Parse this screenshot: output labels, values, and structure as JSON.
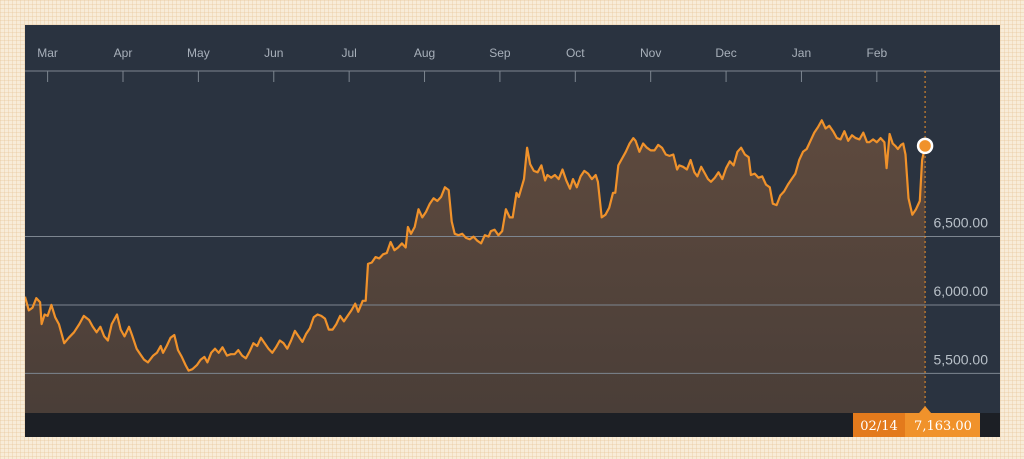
{
  "chart_data": {
    "type": "area",
    "title": "",
    "xlabel": "",
    "ylabel": "",
    "ylim": [
      5210,
      7630
    ],
    "y_ticks": [
      {
        "value": 5500,
        "label": "5,500.00"
      },
      {
        "value": 6000,
        "label": "6,000.00"
      },
      {
        "value": 6500,
        "label": "6,500.00"
      }
    ],
    "x_months": [
      {
        "label": "Mar",
        "value": 0.3
      },
      {
        "label": "Apr",
        "value": 1.3
      },
      {
        "label": "May",
        "value": 2.3
      },
      {
        "label": "Jun",
        "value": 3.3
      },
      {
        "label": "Jul",
        "value": 4.3
      },
      {
        "label": "Aug",
        "value": 5.3
      },
      {
        "label": "Sep",
        "value": 6.3
      },
      {
        "label": "Oct",
        "value": 7.3
      },
      {
        "label": "Nov",
        "value": 8.3
      },
      {
        "label": "Dec",
        "value": 9.3
      },
      {
        "label": "Jan",
        "value": 10.3
      },
      {
        "label": "Feb",
        "value": 11.3
      }
    ],
    "x_domain": [
      0,
      11.74
    ],
    "series": [
      {
        "points": [
          [
            0.0,
            6060
          ],
          [
            0.05,
            5960
          ],
          [
            0.1,
            5980
          ],
          [
            0.15,
            6050
          ],
          [
            0.2,
            6020
          ],
          [
            0.22,
            5860
          ],
          [
            0.26,
            5930
          ],
          [
            0.3,
            5920
          ],
          [
            0.35,
            6000
          ],
          [
            0.4,
            5910
          ],
          [
            0.45,
            5860
          ],
          [
            0.52,
            5720
          ],
          [
            0.58,
            5760
          ],
          [
            0.65,
            5800
          ],
          [
            0.72,
            5860
          ],
          [
            0.78,
            5920
          ],
          [
            0.85,
            5890
          ],
          [
            0.9,
            5840
          ],
          [
            0.95,
            5800
          ],
          [
            1.0,
            5840
          ],
          [
            1.05,
            5770
          ],
          [
            1.1,
            5740
          ],
          [
            1.15,
            5860
          ],
          [
            1.22,
            5930
          ],
          [
            1.27,
            5820
          ],
          [
            1.32,
            5770
          ],
          [
            1.38,
            5840
          ],
          [
            1.42,
            5780
          ],
          [
            1.48,
            5680
          ],
          [
            1.53,
            5640
          ],
          [
            1.58,
            5600
          ],
          [
            1.63,
            5580
          ],
          [
            1.7,
            5630
          ],
          [
            1.75,
            5650
          ],
          [
            1.8,
            5700
          ],
          [
            1.83,
            5650
          ],
          [
            1.88,
            5700
          ],
          [
            1.93,
            5760
          ],
          [
            1.98,
            5780
          ],
          [
            2.03,
            5670
          ],
          [
            2.08,
            5620
          ],
          [
            2.13,
            5560
          ],
          [
            2.17,
            5520
          ],
          [
            2.22,
            5530
          ],
          [
            2.28,
            5560
          ],
          [
            2.33,
            5600
          ],
          [
            2.38,
            5620
          ],
          [
            2.42,
            5580
          ],
          [
            2.47,
            5650
          ],
          [
            2.52,
            5680
          ],
          [
            2.57,
            5650
          ],
          [
            2.62,
            5690
          ],
          [
            2.68,
            5630
          ],
          [
            2.73,
            5640
          ],
          [
            2.78,
            5640
          ],
          [
            2.83,
            5670
          ],
          [
            2.88,
            5630
          ],
          [
            2.93,
            5610
          ],
          [
            2.98,
            5660
          ],
          [
            3.03,
            5720
          ],
          [
            3.08,
            5700
          ],
          [
            3.13,
            5760
          ],
          [
            3.18,
            5720
          ],
          [
            3.23,
            5680
          ],
          [
            3.28,
            5650
          ],
          [
            3.33,
            5690
          ],
          [
            3.38,
            5740
          ],
          [
            3.43,
            5720
          ],
          [
            3.48,
            5680
          ],
          [
            3.53,
            5740
          ],
          [
            3.58,
            5810
          ],
          [
            3.63,
            5770
          ],
          [
            3.68,
            5730
          ],
          [
            3.73,
            5790
          ],
          [
            3.78,
            5830
          ],
          [
            3.83,
            5910
          ],
          [
            3.88,
            5930
          ],
          [
            3.93,
            5920
          ],
          [
            3.98,
            5900
          ],
          [
            4.03,
            5820
          ],
          [
            4.08,
            5820
          ],
          [
            4.13,
            5860
          ],
          [
            4.18,
            5920
          ],
          [
            4.23,
            5880
          ],
          [
            4.28,
            5920
          ],
          [
            4.33,
            5960
          ],
          [
            4.38,
            6010
          ],
          [
            4.42,
            5950
          ],
          [
            4.48,
            6030
          ],
          [
            4.52,
            6030
          ],
          [
            4.55,
            6300
          ],
          [
            4.6,
            6310
          ],
          [
            4.65,
            6350
          ],
          [
            4.7,
            6340
          ],
          [
            4.75,
            6370
          ],
          [
            4.8,
            6380
          ],
          [
            4.85,
            6460
          ],
          [
            4.9,
            6400
          ],
          [
            4.95,
            6420
          ],
          [
            5.0,
            6450
          ],
          [
            5.05,
            6420
          ],
          [
            5.08,
            6570
          ],
          [
            5.12,
            6520
          ],
          [
            5.17,
            6570
          ],
          [
            5.22,
            6700
          ],
          [
            5.27,
            6640
          ],
          [
            5.32,
            6680
          ],
          [
            5.37,
            6740
          ],
          [
            5.42,
            6780
          ],
          [
            5.47,
            6760
          ],
          [
            5.52,
            6790
          ],
          [
            5.57,
            6860
          ],
          [
            5.62,
            6840
          ],
          [
            5.66,
            6610
          ],
          [
            5.7,
            6520
          ],
          [
            5.75,
            6510
          ],
          [
            5.8,
            6520
          ],
          [
            5.85,
            6490
          ],
          [
            5.9,
            6480
          ],
          [
            5.95,
            6500
          ],
          [
            6.0,
            6470
          ],
          [
            6.05,
            6450
          ],
          [
            6.1,
            6510
          ],
          [
            6.15,
            6500
          ],
          [
            6.18,
            6540
          ],
          [
            6.23,
            6550
          ],
          [
            6.28,
            6510
          ],
          [
            6.33,
            6540
          ],
          [
            6.38,
            6700
          ],
          [
            6.43,
            6640
          ],
          [
            6.47,
            6640
          ],
          [
            6.52,
            6820
          ],
          [
            6.55,
            6790
          ],
          [
            6.62,
            6920
          ],
          [
            6.66,
            7150
          ],
          [
            6.7,
            7030
          ],
          [
            6.75,
            6980
          ],
          [
            6.8,
            6970
          ],
          [
            6.85,
            7020
          ],
          [
            6.9,
            6910
          ],
          [
            6.93,
            6950
          ],
          [
            6.98,
            6930
          ],
          [
            7.03,
            6950
          ],
          [
            7.08,
            6920
          ],
          [
            7.13,
            6990
          ],
          [
            7.18,
            6910
          ],
          [
            7.23,
            6850
          ],
          [
            7.27,
            6920
          ],
          [
            7.32,
            6860
          ],
          [
            7.37,
            6940
          ],
          [
            7.42,
            6980
          ],
          [
            7.47,
            6960
          ],
          [
            7.52,
            6920
          ],
          [
            7.57,
            6950
          ],
          [
            7.6,
            6900
          ],
          [
            7.65,
            6640
          ],
          [
            7.7,
            6660
          ],
          [
            7.75,
            6710
          ],
          [
            7.8,
            6820
          ],
          [
            7.83,
            6820
          ],
          [
            7.87,
            7020
          ],
          [
            7.92,
            7070
          ],
          [
            7.97,
            7120
          ],
          [
            8.02,
            7180
          ],
          [
            8.07,
            7220
          ],
          [
            8.1,
            7200
          ],
          [
            8.15,
            7120
          ],
          [
            8.2,
            7180
          ],
          [
            8.25,
            7150
          ],
          [
            8.3,
            7130
          ],
          [
            8.35,
            7130
          ],
          [
            8.4,
            7170
          ],
          [
            8.45,
            7150
          ],
          [
            8.5,
            7100
          ],
          [
            8.55,
            7090
          ],
          [
            8.6,
            7100
          ],
          [
            8.65,
            6990
          ],
          [
            8.68,
            7020
          ],
          [
            8.73,
            7010
          ],
          [
            8.78,
            6990
          ],
          [
            8.83,
            7060
          ],
          [
            8.88,
            6970
          ],
          [
            8.92,
            6940
          ],
          [
            8.97,
            7010
          ],
          [
            9.02,
            6960
          ],
          [
            9.06,
            6920
          ],
          [
            9.1,
            6900
          ],
          [
            9.15,
            6930
          ],
          [
            9.2,
            6970
          ],
          [
            9.25,
            6920
          ],
          [
            9.3,
            7000
          ],
          [
            9.35,
            7050
          ],
          [
            9.4,
            7020
          ],
          [
            9.45,
            7120
          ],
          [
            9.5,
            7150
          ],
          [
            9.55,
            7100
          ],
          [
            9.6,
            7080
          ],
          [
            9.63,
            6950
          ],
          [
            9.68,
            6960
          ],
          [
            9.73,
            6930
          ],
          [
            9.78,
            6940
          ],
          [
            9.83,
            6880
          ],
          [
            9.88,
            6860
          ],
          [
            9.92,
            6740
          ],
          [
            9.97,
            6730
          ],
          [
            10.02,
            6800
          ],
          [
            10.07,
            6830
          ],
          [
            10.12,
            6880
          ],
          [
            10.17,
            6920
          ],
          [
            10.22,
            6960
          ],
          [
            10.27,
            7060
          ],
          [
            10.32,
            7120
          ],
          [
            10.37,
            7140
          ],
          [
            10.42,
            7200
          ],
          [
            10.47,
            7260
          ],
          [
            10.52,
            7300
          ],
          [
            10.57,
            7350
          ],
          [
            10.62,
            7290
          ],
          [
            10.67,
            7310
          ],
          [
            10.72,
            7270
          ],
          [
            10.77,
            7220
          ],
          [
            10.82,
            7210
          ],
          [
            10.87,
            7270
          ],
          [
            10.92,
            7200
          ],
          [
            10.97,
            7240
          ],
          [
            11.02,
            7220
          ],
          [
            11.07,
            7210
          ],
          [
            11.12,
            7260
          ],
          [
            11.17,
            7190
          ],
          [
            11.2,
            7190
          ],
          [
            11.25,
            7210
          ],
          [
            11.3,
            7190
          ],
          [
            11.35,
            7220
          ],
          [
            11.4,
            7190
          ],
          [
            11.43,
            7000
          ],
          [
            11.47,
            7250
          ],
          [
            11.51,
            7180
          ],
          [
            11.55,
            7160
          ],
          [
            11.58,
            7140
          ],
          [
            11.62,
            7170
          ],
          [
            11.65,
            7180
          ],
          [
            11.68,
            7100
          ],
          [
            11.72,
            6780
          ],
          [
            11.77,
            6660
          ],
          [
            11.82,
            6700
          ],
          [
            11.87,
            6760
          ],
          [
            11.9,
            7060
          ],
          [
            11.94,
            7163
          ]
        ]
      }
    ],
    "last": {
      "date": "02/14",
      "value": "7,163.00",
      "x": 11.94,
      "y": 7163
    },
    "colors": {
      "line": "#f0922b",
      "area_top": "#5e4a3e",
      "area_bottom": "#4a3e38",
      "plot_bg": "#2a3340",
      "grid": "#7d8690",
      "callout_bg": "#f0922b",
      "callout_date_bg": "#e37a1c"
    },
    "grid": true,
    "legend": "none"
  }
}
